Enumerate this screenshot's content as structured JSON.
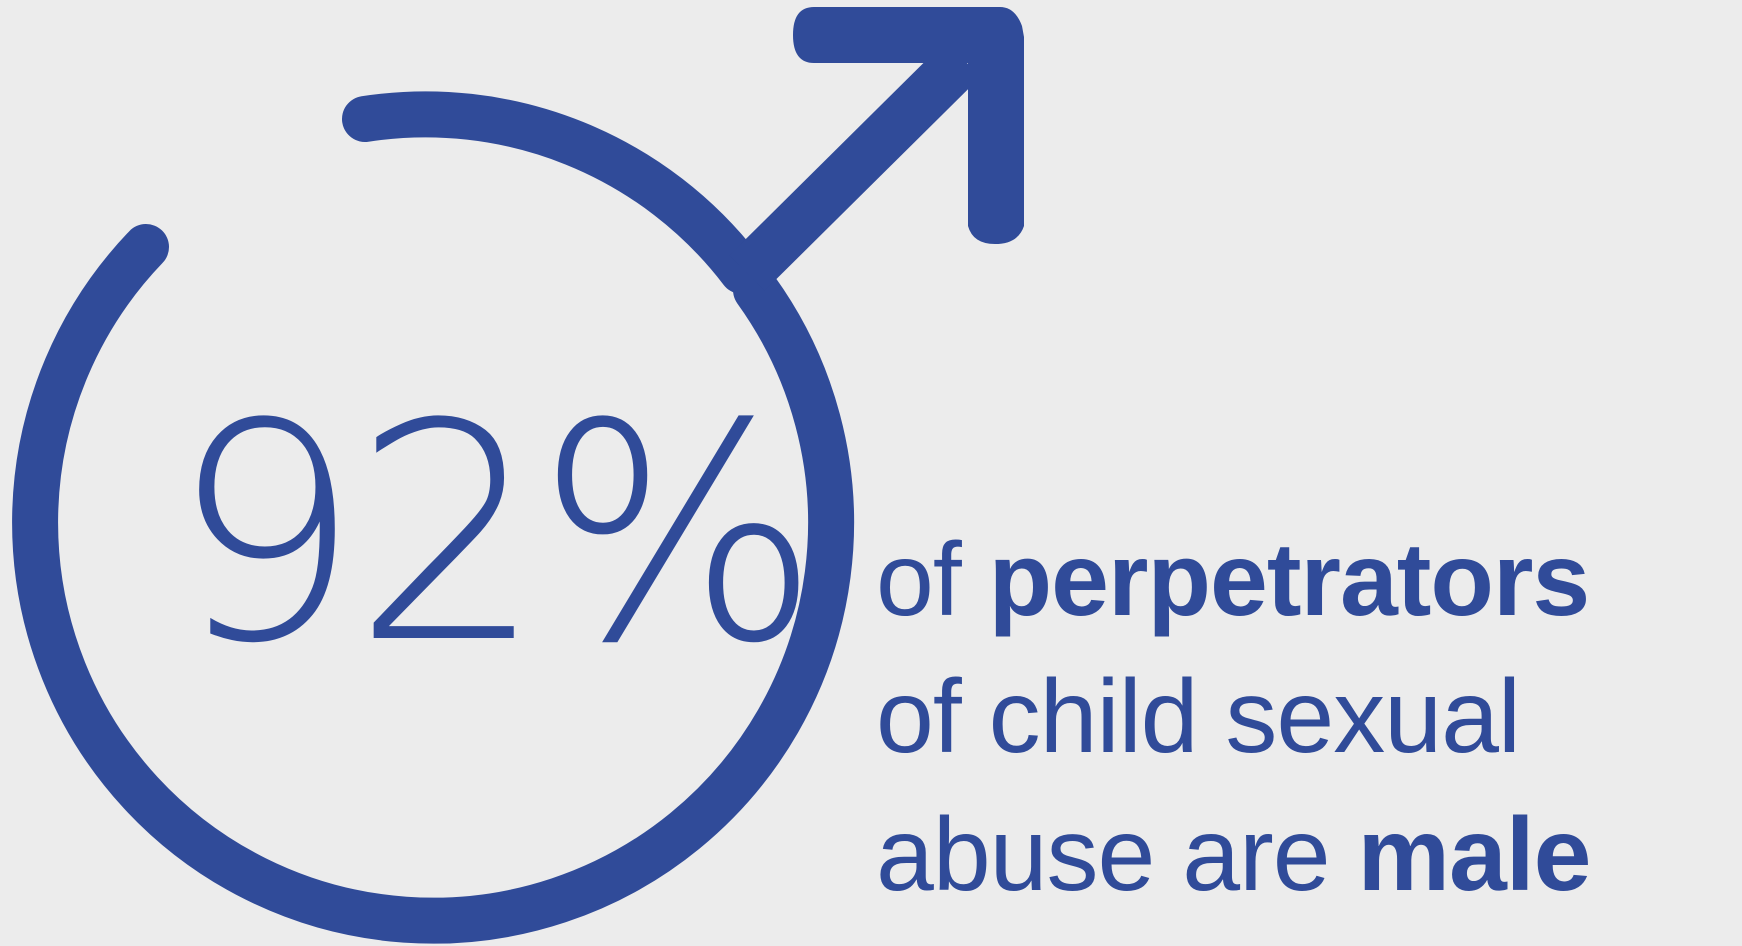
{
  "infographic": {
    "statistic": "92%",
    "caption": {
      "line1_plain": "of ",
      "line1_bold": "perpetrators",
      "line2": "of child sexual",
      "line3_plain": "abuse are ",
      "line3_bold": "male"
    }
  },
  "colors": {
    "primary": "#304b99",
    "background": "#ececec"
  },
  "icons": {
    "main": "male-symbol-icon"
  }
}
